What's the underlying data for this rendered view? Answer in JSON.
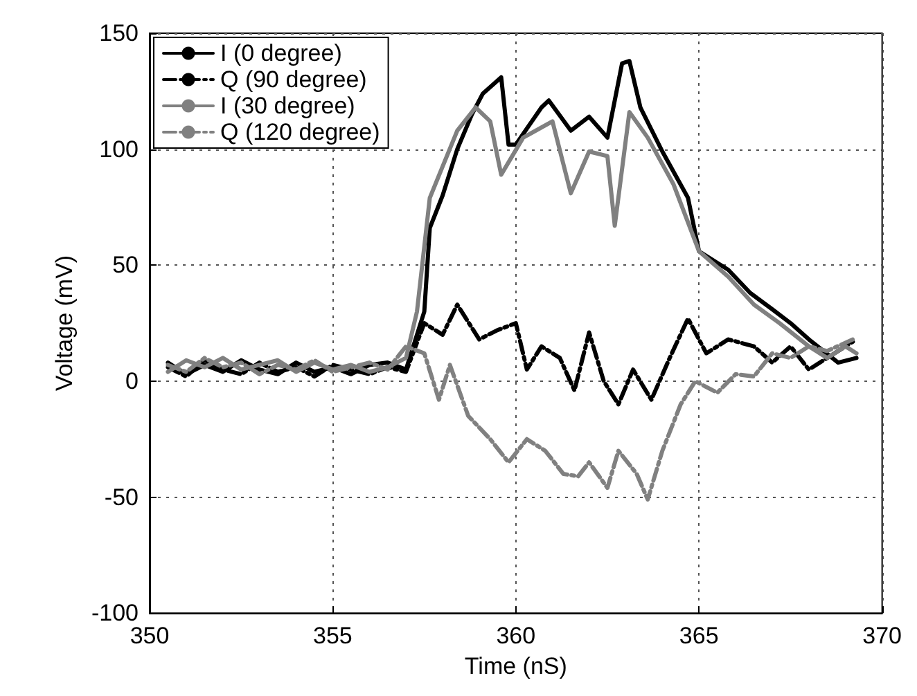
{
  "chart_data": {
    "type": "line",
    "xlabel": "Time (nS)",
    "ylabel": "Voltage (mV)",
    "xlim": [
      350,
      370
    ],
    "ylim": [
      -100,
      150
    ],
    "xticks": [
      350,
      355,
      360,
      365,
      370
    ],
    "yticks": [
      -100,
      -50,
      0,
      50,
      100,
      150
    ],
    "grid": true,
    "legend": "top left",
    "marker": "none",
    "series": [
      {
        "name": "I (0 degree)",
        "color": "#000000",
        "line_style": "solid",
        "x": [
          350.5,
          351,
          351.5,
          352,
          352.5,
          353,
          353.5,
          354,
          354.5,
          355,
          355.5,
          356,
          356.5,
          357,
          357.5,
          357.65,
          358,
          358.4,
          358.8,
          359.1,
          359.6,
          359.8,
          360,
          360.7,
          360.9,
          361.5,
          362,
          362.5,
          362.9,
          363.1,
          363.4,
          364,
          364.7,
          365,
          365.8,
          366.4,
          367,
          367.5,
          368,
          368.8,
          369.3
        ],
        "values": [
          8,
          3,
          7,
          4,
          9,
          5,
          3,
          8,
          4,
          6,
          3,
          7,
          8,
          5,
          30,
          66,
          80,
          100,
          115,
          124,
          131,
          102,
          102,
          118,
          121,
          108,
          114,
          105,
          137,
          138,
          118,
          99,
          79,
          56,
          48,
          38,
          31,
          25,
          18,
          8,
          10
        ]
      },
      {
        "name": "Q (90 degree)",
        "color": "#000000",
        "line_style": "dashed",
        "x": [
          350.5,
          351,
          351.5,
          352,
          352.5,
          353,
          353.5,
          354,
          354.5,
          355,
          355.5,
          356,
          356.5,
          357,
          357.5,
          358,
          358.4,
          359,
          359.5,
          360,
          360.3,
          360.7,
          361.2,
          361.6,
          362,
          362.4,
          362.8,
          363.2,
          363.7,
          364.2,
          364.7,
          365.2,
          365.8,
          366.5,
          367,
          367.5,
          368,
          368.5,
          369.2
        ],
        "values": [
          6,
          2,
          9,
          5,
          3,
          8,
          4,
          6,
          2,
          7,
          5,
          3,
          6,
          4,
          25,
          20,
          33,
          18,
          22,
          25,
          5,
          15,
          10,
          -4,
          21,
          0,
          -10,
          5,
          -8,
          10,
          27,
          12,
          18,
          15,
          8,
          15,
          5,
          10,
          17
        ]
      },
      {
        "name": "I (30 degree)",
        "color": "#808080",
        "line_style": "solid",
        "x": [
          350.5,
          351,
          351.5,
          352,
          352.5,
          353,
          353.5,
          354,
          354.5,
          355,
          355.5,
          356,
          356.5,
          357,
          357.3,
          357.65,
          358.4,
          358.9,
          359.3,
          359.6,
          360.2,
          361,
          361.5,
          362,
          362.5,
          362.7,
          363.1,
          363.6,
          364.3,
          365,
          365.8,
          366.5,
          367.2,
          368,
          368.5,
          369,
          369.3
        ],
        "values": [
          4,
          9,
          6,
          10,
          5,
          7,
          9,
          4,
          8,
          5,
          7,
          4,
          6,
          10,
          30,
          79,
          108,
          118,
          112,
          89,
          105,
          112,
          81,
          99,
          97,
          67,
          116,
          105,
          85,
          56,
          45,
          33,
          25,
          15,
          10,
          15,
          12
        ]
      },
      {
        "name": "Q (120 degree)",
        "color": "#808080",
        "line_style": "dashed",
        "x": [
          350.5,
          351,
          351.5,
          352,
          352.5,
          353,
          353.5,
          354,
          354.5,
          355,
          355.5,
          356,
          356.5,
          357,
          357.5,
          357.9,
          358.2,
          358.7,
          359.3,
          359.8,
          360.3,
          360.8,
          361.3,
          361.7,
          362,
          362.5,
          362.8,
          363.3,
          363.6,
          364,
          364.5,
          364.9,
          365.5,
          366,
          366.5,
          367,
          367.5,
          368,
          368.5,
          369.2
        ],
        "values": [
          7,
          4,
          10,
          6,
          8,
          3,
          7,
          5,
          9,
          4,
          6,
          8,
          5,
          15,
          12,
          -8,
          7,
          -15,
          -25,
          -35,
          -25,
          -30,
          -40,
          -41,
          -35,
          -46,
          -30,
          -40,
          -51,
          -30,
          -10,
          0,
          -5,
          3,
          2,
          12,
          10,
          15,
          13,
          18
        ]
      }
    ]
  }
}
